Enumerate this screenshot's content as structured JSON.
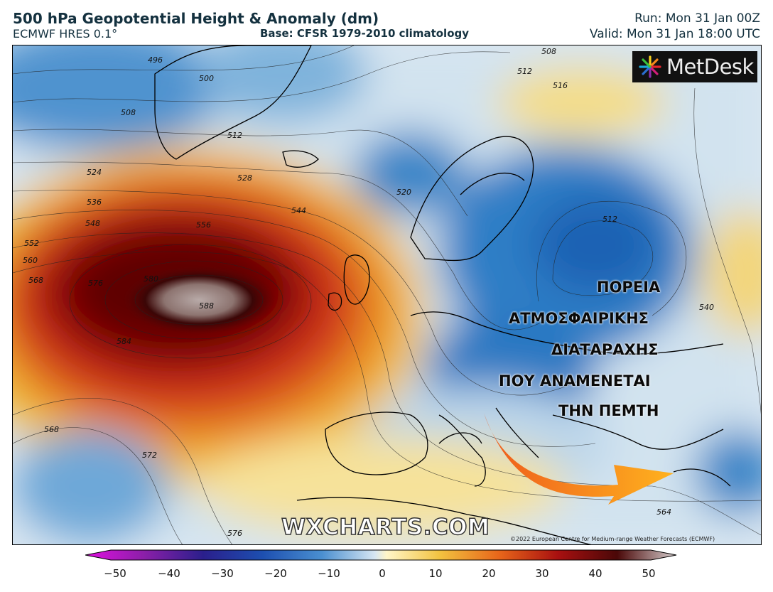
{
  "header": {
    "title": "500 hPa Geopotential Height & Anomaly (dm)",
    "subtitle": "ECMWF HRES 0.1°",
    "base": "Base: CFSR 1979-2010 climatology",
    "run": "Run: Mon 31 Jan 00Z",
    "valid": "Valid: Mon 31 Jan 18:00 UTC"
  },
  "logo": {
    "text": "MetDesk",
    "icon": "pinwheel-logo-icon"
  },
  "annotation": {
    "lines": [
      "ΠΟΡΕΙΑ",
      "ΑΤΜΟΣΦΑΙΡΙΚΗΣ",
      "ΔΙΑΤΑΡΑΧΗΣ",
      "ΠΟΥ ΑΝΑΜΕΝΕΤΑΙ",
      "ΤΗΝ ΠΕΜΤΗ"
    ],
    "arrow_icon": "orange-arrow-icon"
  },
  "watermark": "WXCHARTS.COM",
  "copyright": "©2022 European Centre for Medium-range Weather Forecasts (ECMWF)",
  "contour_labels": [
    "496",
    "500",
    "508",
    "512",
    "524",
    "528",
    "536",
    "544",
    "548",
    "552",
    "556",
    "560",
    "568",
    "576",
    "580",
    "584",
    "588",
    "520",
    "512",
    "516",
    "508",
    "512",
    "540",
    "568",
    "572",
    "576",
    "564"
  ],
  "colorbar": {
    "ticks": [
      "−50",
      "−40",
      "−30",
      "−20",
      "−10",
      "0",
      "10",
      "20",
      "30",
      "40",
      "50"
    ],
    "colors": [
      "#e010e0",
      "#8a1fa8",
      "#2a1f8c",
      "#1d4fb0",
      "#4a8fd0",
      "#bcd6ea",
      "#fff6c8",
      "#f2c240",
      "#e8661a",
      "#a81010",
      "#4a0808",
      "#d8d0d0"
    ]
  }
}
